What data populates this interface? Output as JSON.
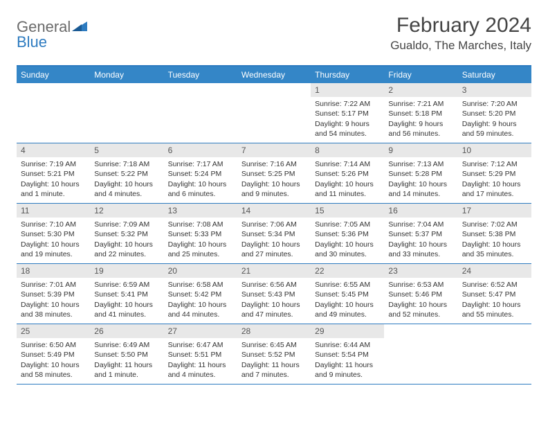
{
  "logo": {
    "text1": "General",
    "text2": "Blue"
  },
  "title": "February 2024",
  "location": "Gualdo, The Marches, Italy",
  "colors": {
    "header_bg": "#3486c7",
    "border": "#2d7bc0",
    "daynum_bg": "#e8e8e8",
    "text": "#333333"
  },
  "day_names": [
    "Sunday",
    "Monday",
    "Tuesday",
    "Wednesday",
    "Thursday",
    "Friday",
    "Saturday"
  ],
  "weeks": [
    [
      {
        "num": "",
        "lines": []
      },
      {
        "num": "",
        "lines": []
      },
      {
        "num": "",
        "lines": []
      },
      {
        "num": "",
        "lines": []
      },
      {
        "num": "1",
        "lines": [
          "Sunrise: 7:22 AM",
          "Sunset: 5:17 PM",
          "Daylight: 9 hours and 54 minutes."
        ]
      },
      {
        "num": "2",
        "lines": [
          "Sunrise: 7:21 AM",
          "Sunset: 5:18 PM",
          "Daylight: 9 hours and 56 minutes."
        ]
      },
      {
        "num": "3",
        "lines": [
          "Sunrise: 7:20 AM",
          "Sunset: 5:20 PM",
          "Daylight: 9 hours and 59 minutes."
        ]
      }
    ],
    [
      {
        "num": "4",
        "lines": [
          "Sunrise: 7:19 AM",
          "Sunset: 5:21 PM",
          "Daylight: 10 hours and 1 minute."
        ]
      },
      {
        "num": "5",
        "lines": [
          "Sunrise: 7:18 AM",
          "Sunset: 5:22 PM",
          "Daylight: 10 hours and 4 minutes."
        ]
      },
      {
        "num": "6",
        "lines": [
          "Sunrise: 7:17 AM",
          "Sunset: 5:24 PM",
          "Daylight: 10 hours and 6 minutes."
        ]
      },
      {
        "num": "7",
        "lines": [
          "Sunrise: 7:16 AM",
          "Sunset: 5:25 PM",
          "Daylight: 10 hours and 9 minutes."
        ]
      },
      {
        "num": "8",
        "lines": [
          "Sunrise: 7:14 AM",
          "Sunset: 5:26 PM",
          "Daylight: 10 hours and 11 minutes."
        ]
      },
      {
        "num": "9",
        "lines": [
          "Sunrise: 7:13 AM",
          "Sunset: 5:28 PM",
          "Daylight: 10 hours and 14 minutes."
        ]
      },
      {
        "num": "10",
        "lines": [
          "Sunrise: 7:12 AM",
          "Sunset: 5:29 PM",
          "Daylight: 10 hours and 17 minutes."
        ]
      }
    ],
    [
      {
        "num": "11",
        "lines": [
          "Sunrise: 7:10 AM",
          "Sunset: 5:30 PM",
          "Daylight: 10 hours and 19 minutes."
        ]
      },
      {
        "num": "12",
        "lines": [
          "Sunrise: 7:09 AM",
          "Sunset: 5:32 PM",
          "Daylight: 10 hours and 22 minutes."
        ]
      },
      {
        "num": "13",
        "lines": [
          "Sunrise: 7:08 AM",
          "Sunset: 5:33 PM",
          "Daylight: 10 hours and 25 minutes."
        ]
      },
      {
        "num": "14",
        "lines": [
          "Sunrise: 7:06 AM",
          "Sunset: 5:34 PM",
          "Daylight: 10 hours and 27 minutes."
        ]
      },
      {
        "num": "15",
        "lines": [
          "Sunrise: 7:05 AM",
          "Sunset: 5:36 PM",
          "Daylight: 10 hours and 30 minutes."
        ]
      },
      {
        "num": "16",
        "lines": [
          "Sunrise: 7:04 AM",
          "Sunset: 5:37 PM",
          "Daylight: 10 hours and 33 minutes."
        ]
      },
      {
        "num": "17",
        "lines": [
          "Sunrise: 7:02 AM",
          "Sunset: 5:38 PM",
          "Daylight: 10 hours and 35 minutes."
        ]
      }
    ],
    [
      {
        "num": "18",
        "lines": [
          "Sunrise: 7:01 AM",
          "Sunset: 5:39 PM",
          "Daylight: 10 hours and 38 minutes."
        ]
      },
      {
        "num": "19",
        "lines": [
          "Sunrise: 6:59 AM",
          "Sunset: 5:41 PM",
          "Daylight: 10 hours and 41 minutes."
        ]
      },
      {
        "num": "20",
        "lines": [
          "Sunrise: 6:58 AM",
          "Sunset: 5:42 PM",
          "Daylight: 10 hours and 44 minutes."
        ]
      },
      {
        "num": "21",
        "lines": [
          "Sunrise: 6:56 AM",
          "Sunset: 5:43 PM",
          "Daylight: 10 hours and 47 minutes."
        ]
      },
      {
        "num": "22",
        "lines": [
          "Sunrise: 6:55 AM",
          "Sunset: 5:45 PM",
          "Daylight: 10 hours and 49 minutes."
        ]
      },
      {
        "num": "23",
        "lines": [
          "Sunrise: 6:53 AM",
          "Sunset: 5:46 PM",
          "Daylight: 10 hours and 52 minutes."
        ]
      },
      {
        "num": "24",
        "lines": [
          "Sunrise: 6:52 AM",
          "Sunset: 5:47 PM",
          "Daylight: 10 hours and 55 minutes."
        ]
      }
    ],
    [
      {
        "num": "25",
        "lines": [
          "Sunrise: 6:50 AM",
          "Sunset: 5:49 PM",
          "Daylight: 10 hours and 58 minutes."
        ]
      },
      {
        "num": "26",
        "lines": [
          "Sunrise: 6:49 AM",
          "Sunset: 5:50 PM",
          "Daylight: 11 hours and 1 minute."
        ]
      },
      {
        "num": "27",
        "lines": [
          "Sunrise: 6:47 AM",
          "Sunset: 5:51 PM",
          "Daylight: 11 hours and 4 minutes."
        ]
      },
      {
        "num": "28",
        "lines": [
          "Sunrise: 6:45 AM",
          "Sunset: 5:52 PM",
          "Daylight: 11 hours and 7 minutes."
        ]
      },
      {
        "num": "29",
        "lines": [
          "Sunrise: 6:44 AM",
          "Sunset: 5:54 PM",
          "Daylight: 11 hours and 9 minutes."
        ]
      },
      {
        "num": "",
        "lines": []
      },
      {
        "num": "",
        "lines": []
      }
    ]
  ]
}
